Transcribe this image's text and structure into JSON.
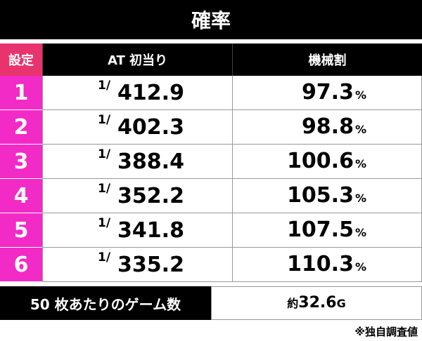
{
  "title": "確率",
  "header": {
    "setting": "設定",
    "at": "AT 初当り",
    "payout": "機械割"
  },
  "rows": [
    {
      "setting": "1",
      "at_prefix": "1/",
      "at": "412.9",
      "payout": "97.3",
      "unit": "%"
    },
    {
      "setting": "2",
      "at_prefix": "1/",
      "at": "402.3",
      "payout": "98.8",
      "unit": "%"
    },
    {
      "setting": "3",
      "at_prefix": "1/",
      "at": "388.4",
      "payout": "100.6",
      "unit": "%"
    },
    {
      "setting": "4",
      "at_prefix": "1/",
      "at": "352.2",
      "payout": "105.3",
      "unit": "%"
    },
    {
      "setting": "5",
      "at_prefix": "1/",
      "at": "341.8",
      "payout": "107.5",
      "unit": "%"
    },
    {
      "setting": "6",
      "at_prefix": "1/",
      "at": "335.2",
      "payout": "110.3",
      "unit": "%"
    }
  ],
  "footer": {
    "label": "50 枚あたりのゲーム数",
    "prefix": "約",
    "value": "32.6",
    "unit": "G"
  },
  "note": "※独自調査値"
}
